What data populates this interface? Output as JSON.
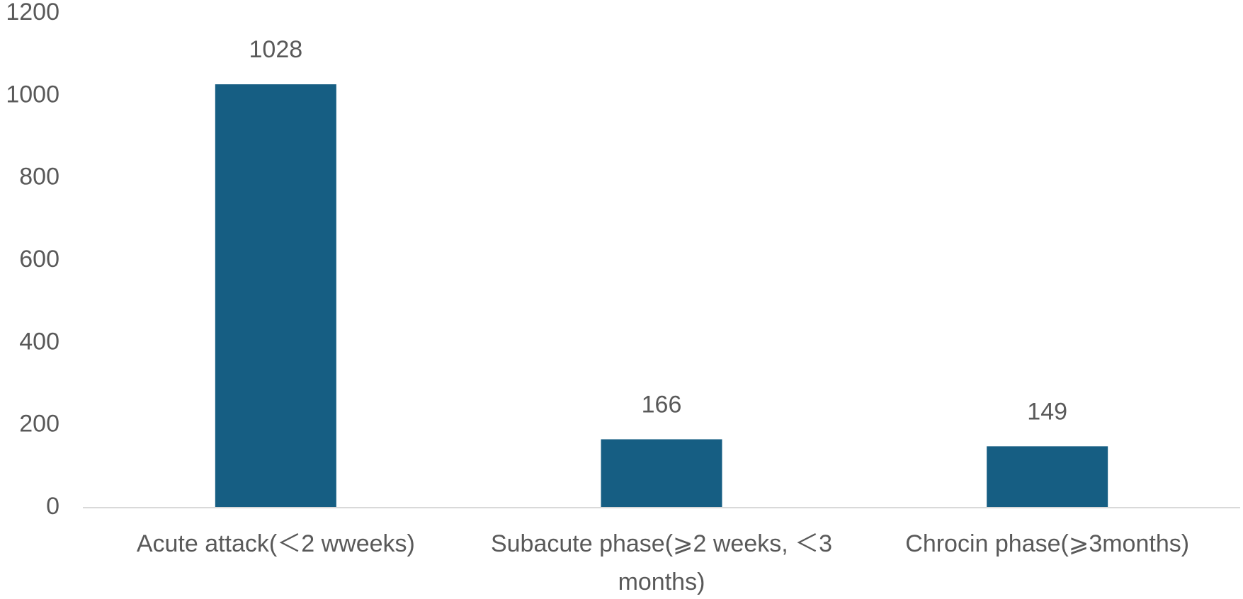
{
  "chart_data": {
    "type": "bar",
    "categories": [
      "Acute attack(＜2 wweeks)",
      "Subacute phase(⩾2 weeks, ＜3 months)",
      "Chrocin phase(⩾3months)"
    ],
    "values": [
      1028,
      166,
      149
    ],
    "color": "#165e83",
    "ylim": [
      0,
      1200
    ],
    "yticks": [
      0,
      200,
      400,
      600,
      800,
      1000,
      1200
    ],
    "grid": false
  }
}
